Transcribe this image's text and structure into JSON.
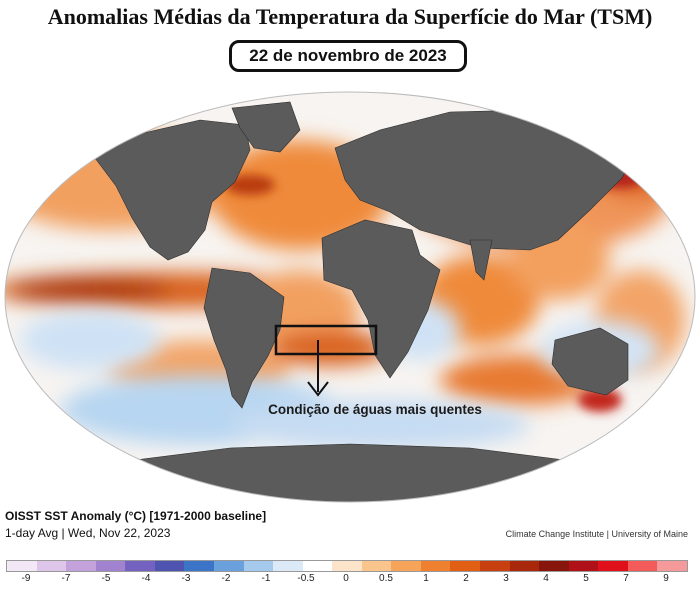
{
  "header": {
    "title": "Anomalias Médias da Temperatura da Superfície do Mar (TSM)",
    "date": "22 de novembro de 2023"
  },
  "annotation": {
    "text": "Condição de águas mais quentes"
  },
  "footer": {
    "dataset": "OISST SST Anomaly (°C) [1971-2000 baseline]",
    "period": "1-day Avg | Wed, Nov 22, 2023",
    "credit": "Climate Change Institute | University of Maine"
  },
  "colorbar": {
    "ticks": [
      "-9",
      "-7",
      "-5",
      "-4",
      "-3",
      "-2",
      "-1",
      "-0.5",
      "0",
      "0.5",
      "1",
      "2",
      "3",
      "4",
      "5",
      "7",
      "9"
    ],
    "colors": [
      "#f3e8f6",
      "#ddc6ea",
      "#c3a2dc",
      "#a182cf",
      "#7462c0",
      "#4f54b1",
      "#3c74c8",
      "#6aa0dc",
      "#a6c9ee",
      "#dceaf8",
      "#ffffff",
      "#fbe4c9",
      "#f9c58c",
      "#f5a45a",
      "#ee8030",
      "#e05f15",
      "#c94010",
      "#a9270a",
      "#87150c",
      "#b01018",
      "#e0101b",
      "#f35a5a",
      "#f59a9a"
    ]
  },
  "colors": {
    "ocean_warm": "#ef8a3a",
    "ocean_hot": "#b83a0f",
    "ocean_cool": "#b7d6f1",
    "land": "#5b5b5b"
  }
}
